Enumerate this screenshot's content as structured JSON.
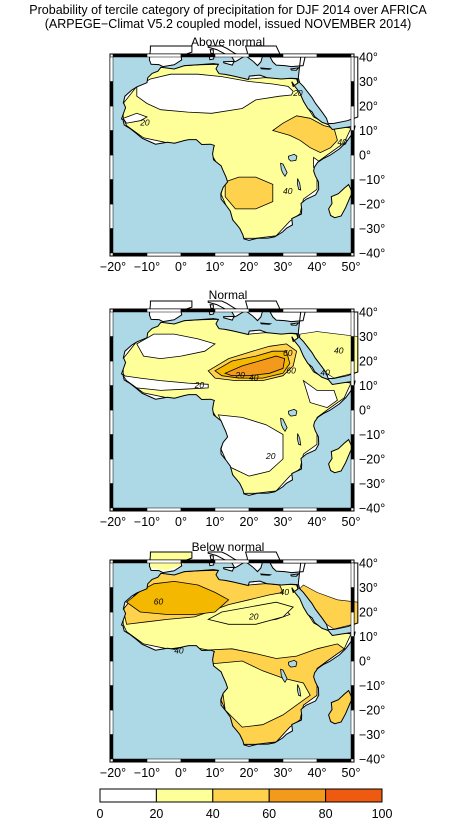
{
  "title": {
    "line1": "Probability of tercile category of precipitation for DJF 2014 over AFRICA",
    "line2": "(ARPEGE−Climat V5.2 coupled model, issued NOVEMBER 2014)"
  },
  "panels": [
    {
      "label": "Above normal",
      "contour_labels": [
        "20",
        "20",
        "40",
        "40"
      ]
    },
    {
      "label": "Normal",
      "contour_labels": [
        "60",
        "20",
        "40",
        "60",
        "20",
        "20",
        "40",
        "40"
      ]
    },
    {
      "label": "Below normal",
      "contour_labels": [
        "60",
        "40",
        "20",
        "40"
      ]
    }
  ],
  "axes": {
    "lon_ticks": [
      "−20°",
      "−10°",
      "0°",
      "10°",
      "20°",
      "30°",
      "40°",
      "50°"
    ],
    "lat_ticks": [
      "40°",
      "30°",
      "20°",
      "10°",
      "0°",
      "−10°",
      "−20°",
      "−30°",
      "−40°"
    ]
  },
  "colorbar": {
    "labels": [
      "0",
      "20",
      "40",
      "60",
      "80",
      "100"
    ],
    "colors": [
      "#ffffff",
      "#ffff99",
      "#ffd24d",
      "#f5b800",
      "#f39a1c",
      "#ee5a0f"
    ]
  },
  "map_colors": {
    "ocean": "#add8e6",
    "lake": "#add8e6",
    "frame_dark": "#000000",
    "frame_light": "#ffffff"
  }
}
